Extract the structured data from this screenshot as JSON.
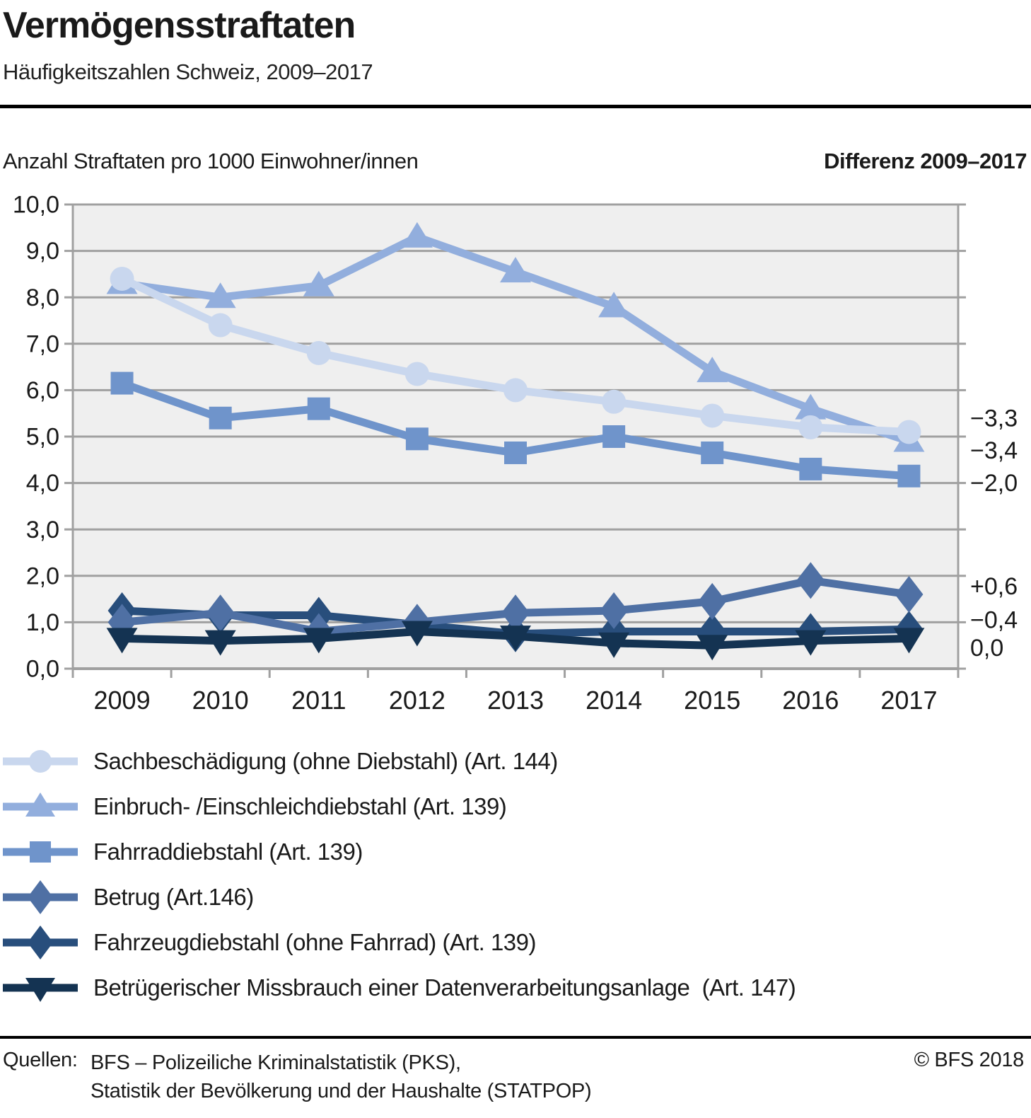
{
  "header": {
    "title": "Vermögensstraftaten",
    "subtitle": "Häufigkeitszahlen Schweiz, 2009–2017"
  },
  "chart": {
    "left_heading": "Anzahl Straftaten pro 1000 Einwohner/innen",
    "right_heading": "Differenz 2009–2017"
  },
  "chart_data": {
    "type": "line",
    "title": "Vermögensstraftaten – Häufigkeitszahlen Schweiz, 2009–2017",
    "xlabel": "",
    "ylabel": "Anzahl Straftaten pro 1000 Einwohner/innen",
    "categories": [
      "2009",
      "2010",
      "2011",
      "2012",
      "2013",
      "2014",
      "2015",
      "2016",
      "2017"
    ],
    "ylim": [
      0,
      10
    ],
    "ytick_step": 1,
    "y_tick_labels": [
      "0,0",
      "1,0",
      "2,0",
      "3,0",
      "4,0",
      "5,0",
      "6,0",
      "7,0",
      "8,0",
      "9,0",
      "10,0"
    ],
    "grid": true,
    "legend_position": "bottom",
    "plot_bg": "#efefef",
    "grid_color": "#a0a0a0",
    "draw_order": [
      1,
      0,
      2,
      4,
      3,
      5
    ],
    "series": [
      {
        "name": "Sachbeschädigung (ohne Diebstahl) (Art. 144)",
        "marker": "circle",
        "color": "#c9d7ee",
        "values": [
          8.4,
          7.4,
          6.8,
          6.35,
          6.0,
          5.75,
          5.45,
          5.2,
          5.1
        ],
        "diff_label": "−3,3",
        "diff_anchor": 5.4
      },
      {
        "name": "Einbruch- /Einschleichdiebstahl (Art. 139)",
        "marker": "triangle-up",
        "color": "#92aedd",
        "values": [
          8.3,
          8.0,
          8.25,
          9.3,
          8.55,
          7.8,
          6.4,
          5.6,
          4.9
        ],
        "diff_label": "−3,4",
        "diff_anchor": 4.7
      },
      {
        "name": "Fahrraddiebstahl (Art. 139)",
        "marker": "square",
        "color": "#6f94cb",
        "values": [
          6.15,
          5.4,
          5.6,
          4.95,
          4.65,
          5.0,
          4.65,
          4.3,
          4.15
        ],
        "diff_label": "−2,0",
        "diff_anchor": 4.0
      },
      {
        "name": "Betrug (Art.146)",
        "marker": "diamond",
        "color": "#4f70a4",
        "values": [
          1.0,
          1.2,
          0.8,
          1.0,
          1.2,
          1.25,
          1.45,
          1.9,
          1.6
        ],
        "diff_label": "+0,6",
        "diff_anchor": 1.78
      },
      {
        "name": "Fahrzeugdiebstahl (ohne Fahrrad) (Art. 139)",
        "marker": "diamond",
        "color": "#284e7c",
        "values": [
          1.25,
          1.15,
          1.15,
          0.95,
          0.75,
          0.8,
          0.8,
          0.8,
          0.85
        ],
        "diff_label": "−0,4",
        "diff_anchor": 1.05
      },
      {
        "name": "Betrügerischer Missbrauch einer Datenverarbeitungsanlage  (Art. 147)",
        "marker": "triangle-down",
        "color": "#143352",
        "values": [
          0.65,
          0.6,
          0.65,
          0.8,
          0.7,
          0.55,
          0.5,
          0.6,
          0.65
        ],
        "diff_label": "0,0",
        "diff_anchor": 0.45
      }
    ]
  },
  "footer": {
    "sources_label": "Quellen:",
    "source_line1": "BFS – Polizeiliche Kriminalstatistik (PKS),",
    "source_line2": "Statistik der Bevölkerung und der Haushalte (STATPOP)",
    "copyright": "© BFS 2018"
  }
}
